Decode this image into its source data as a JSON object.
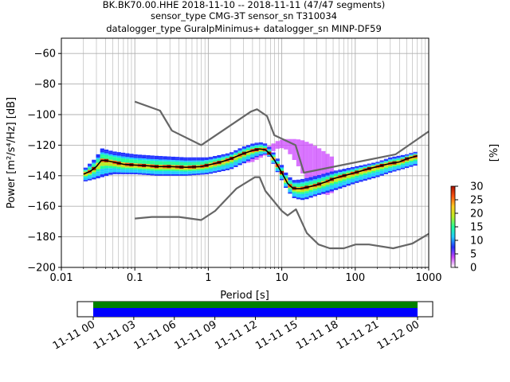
{
  "chart_data": [
    {
      "type": "line",
      "title_lines": [
        "BK.BK70.00.HHE   2018-11-10 -- 2018-11-11  (47/47 segments)",
        "sensor_type CMG-3T sensor_sn T310034",
        "datalogger_type GuralpMinimus+ datalogger_sn MINP-DF59"
      ],
      "xlabel": "Period [s]",
      "ylabel": "Power [m²/s⁴/Hz] [dB]",
      "xscale": "log",
      "xlim": [
        0.01,
        1000
      ],
      "ylim": [
        -200,
        -50
      ],
      "x_ticks": [
        {
          "v": 0.01,
          "label": "0.01"
        },
        {
          "v": 0.1,
          "label": "0.1"
        },
        {
          "v": 1,
          "label": "1"
        },
        {
          "v": 10,
          "label": "10"
        },
        {
          "v": 100,
          "label": "100"
        },
        {
          "v": 1000,
          "label": "1000"
        }
      ],
      "y_ticks": [
        {
          "v": -60,
          "label": "−60"
        },
        {
          "v": -80,
          "label": "−80"
        },
        {
          "v": -100,
          "label": "−100"
        },
        {
          "v": -120,
          "label": "−120"
        },
        {
          "v": -140,
          "label": "−140"
        },
        {
          "v": -160,
          "label": "−160"
        },
        {
          "v": -180,
          "label": "−180"
        },
        {
          "v": -200,
          "label": "−200"
        }
      ],
      "grid": true,
      "series": [
        {
          "role": "new-high-noise-model",
          "color": "#666666",
          "x": [
            0.1,
            0.22,
            0.32,
            0.8,
            3.8,
            4.6,
            6.3,
            7.9,
            15.4,
            20,
            354.8,
            1000
          ],
          "y": [
            -91.5,
            -97.4,
            -110.5,
            -120,
            -98,
            -96.5,
            -101,
            -113.5,
            -120,
            -138,
            -126,
            -111
          ]
        },
        {
          "role": "new-low-noise-model",
          "color": "#666666",
          "x": [
            0.1,
            0.17,
            0.4,
            0.8,
            1.24,
            2.4,
            4.3,
            5,
            6,
            10,
            12,
            15.6,
            21.9,
            31.6,
            45,
            70,
            101,
            154,
            328,
            600,
            1000
          ],
          "y": [
            -168,
            -167,
            -167,
            -169,
            -163,
            -148.5,
            -141,
            -141,
            -150,
            -163,
            -166,
            -162,
            -177.5,
            -185,
            -187.5,
            -187.5,
            -185,
            -185,
            -187.5,
            -184.4,
            -178
          ]
        },
        {
          "role": "mode-psd",
          "color": "#000000",
          "x": [
            0.02,
            0.025,
            0.03,
            0.035,
            0.04,
            0.05,
            0.07,
            0.1,
            0.15,
            0.2,
            0.3,
            0.5,
            0.8,
            1,
            1.5,
            2,
            3,
            4,
            5,
            6,
            7,
            8,
            10,
            12,
            14,
            16,
            18,
            20,
            25,
            30,
            40,
            50,
            70,
            100,
            150,
            200,
            300,
            400,
            500,
            700
          ],
          "y": [
            -139,
            -137,
            -134,
            -130,
            -130,
            -131,
            -132.5,
            -133,
            -133.5,
            -134,
            -134,
            -134.5,
            -134,
            -133,
            -131,
            -129,
            -125.5,
            -123.5,
            -122.5,
            -123,
            -126,
            -130,
            -138,
            -145,
            -148,
            -148.5,
            -148.5,
            -148,
            -147,
            -146,
            -144,
            -142,
            -140,
            -138,
            -135.5,
            -134,
            -132,
            -131,
            -129,
            -127
          ]
        },
        {
          "role": "psd-spread-upper",
          "color": "#3344cc",
          "x": [
            0.02,
            0.03,
            0.035,
            0.05,
            0.1,
            0.2,
            0.5,
            1,
            2,
            3,
            4,
            5,
            6,
            7,
            8,
            10,
            12,
            15,
            20,
            30,
            50,
            100,
            200,
            300,
            500,
            700
          ],
          "y": [
            -136,
            -128,
            -122,
            -124,
            -126,
            -127,
            -128,
            -128,
            -125,
            -121,
            -119,
            -118,
            -119,
            -122,
            -126,
            -133,
            -140,
            -143,
            -142,
            -140,
            -137,
            -134,
            -131,
            -128,
            -126,
            -124
          ]
        },
        {
          "role": "psd-spread-lower",
          "color": "#3344cc",
          "x": [
            0.02,
            0.03,
            0.05,
            0.1,
            0.2,
            0.5,
            1,
            2,
            3,
            4,
            5,
            6,
            7,
            8,
            10,
            12,
            15,
            20,
            30,
            50,
            100,
            200,
            300,
            500,
            700
          ],
          "y": [
            -144,
            -142,
            -139,
            -139,
            -140,
            -140,
            -139,
            -136,
            -132,
            -129,
            -127,
            -126,
            -128,
            -134,
            -143,
            -150,
            -155,
            -156,
            -153,
            -150,
            -145,
            -141,
            -138,
            -135,
            -133
          ]
        },
        {
          "role": "outlier-band-upper",
          "color": "#cc22cc",
          "x": [
            0.03,
            0.05,
            0.1,
            0.3,
            1,
            4,
            7,
            9,
            11,
            13,
            16,
            20,
            25,
            30,
            40,
            50
          ],
          "y": [
            -128,
            -129,
            -131,
            -131,
            -131,
            -126,
            -120,
            -117,
            -116,
            -116,
            -116,
            -117,
            -119,
            -121,
            -125,
            -128
          ]
        },
        {
          "role": "outlier-band-lower",
          "color": "#cc22cc",
          "x": [
            0.03,
            0.05,
            0.1,
            0.3,
            1,
            4,
            7,
            9,
            11,
            13,
            16,
            20,
            25,
            30,
            40,
            50
          ],
          "y": [
            -133,
            -134,
            -135,
            -136,
            -136,
            -131,
            -125,
            -122,
            -122,
            -126,
            -132,
            -140,
            -146,
            -150,
            -153,
            -151
          ]
        }
      ]
    },
    {
      "type": "colorbar",
      "label": "[%]",
      "range": [
        0,
        30
      ],
      "ticks": [
        "0",
        "5",
        "10",
        "15",
        "20",
        "25",
        "30"
      ],
      "colormap": [
        "#ffffff",
        "#cc44ff",
        "#2233ff",
        "#22ccff",
        "#22ff99",
        "#bbee22",
        "#ffcc22",
        "#ff5511",
        "#aa1100"
      ]
    },
    {
      "type": "timeline",
      "x_ticks": [
        "11-11 00",
        "11-11 03",
        "11-11 06",
        "11-11 09",
        "11-11 12",
        "11-11 15",
        "11-11 18",
        "11-11 21",
        "11-12 00"
      ],
      "bar_colors": {
        "available": "#008000",
        "used": "#0000ff"
      }
    }
  ]
}
